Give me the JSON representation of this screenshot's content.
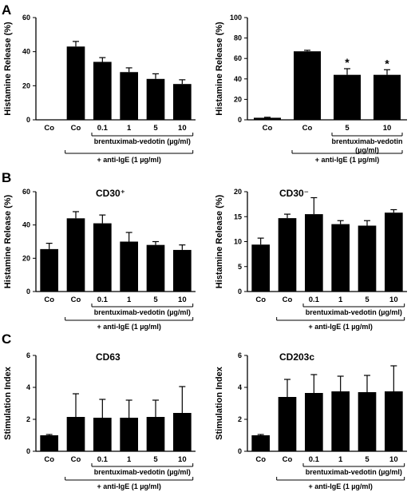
{
  "panel_letters": [
    "A",
    "B",
    "C"
  ],
  "chart_data": [
    {
      "panel": "A",
      "type": "bar",
      "title": "",
      "ylabel": "Histamine Release (%)",
      "ylim": [
        0,
        60
      ],
      "yticks": [
        0,
        20,
        40,
        60
      ],
      "categories": [
        "Co",
        "Co",
        "0.1",
        "1",
        "5",
        "10"
      ],
      "values": [
        0,
        43,
        34,
        28,
        24,
        21
      ],
      "errors": [
        0,
        3,
        2.5,
        2.5,
        3,
        2.5
      ],
      "significance": [
        "",
        "",
        "",
        "",
        "",
        ""
      ],
      "drug_label": "brentuximab-vedotin (µg/ml)",
      "stim_label": "+ anti-IgE (1 µg/ml)",
      "drug_span": [
        2,
        5
      ],
      "stim_span": [
        1,
        5
      ],
      "grid": false,
      "legend": "none"
    },
    {
      "panel": "A",
      "type": "bar",
      "title": "",
      "ylabel": "Histamine Release (%)",
      "ylim": [
        0,
        100
      ],
      "yticks": [
        0,
        20,
        40,
        60,
        80,
        100
      ],
      "categories": [
        "Co",
        "Co",
        "5",
        "10"
      ],
      "values": [
        2,
        67,
        44,
        44
      ],
      "errors": [
        0.5,
        1,
        6,
        5
      ],
      "significance": [
        "",
        "",
        "*",
        "*"
      ],
      "drug_label": "brentuximab-vedotin (µg/ml)",
      "stim_label": "+ anti-IgE (1 µg/ml)",
      "drug_span": [
        2,
        3
      ],
      "stim_span": [
        1,
        3
      ],
      "grid": false,
      "legend": "none"
    },
    {
      "panel": "B",
      "type": "bar",
      "title": "CD30⁺",
      "ylabel": "Histamine Release (%)",
      "ylim": [
        0,
        60
      ],
      "yticks": [
        0,
        20,
        40,
        60
      ],
      "categories": [
        "Co",
        "Co",
        "0.1",
        "1",
        "5",
        "10"
      ],
      "values": [
        25.5,
        44,
        41,
        30,
        28,
        25
      ],
      "errors": [
        3.5,
        4,
        5,
        5.5,
        2,
        3
      ],
      "significance": [
        "",
        "",
        "",
        "",
        "",
        ""
      ],
      "drug_label": "brentuximab-vedotin (µg/ml)",
      "stim_label": "+ anti-IgE (1 µg/ml)",
      "drug_span": [
        2,
        5
      ],
      "stim_span": [
        1,
        5
      ],
      "grid": false,
      "legend": "none"
    },
    {
      "panel": "B",
      "type": "bar",
      "title": "CD30⁻",
      "ylabel": "Histamine Release (%)",
      "ylim": [
        0,
        20
      ],
      "yticks": [
        0,
        5,
        10,
        15,
        20
      ],
      "categories": [
        "Co",
        "Co",
        "0.1",
        "1",
        "5",
        "10"
      ],
      "values": [
        9.4,
        14.7,
        15.5,
        13.5,
        13.2,
        15.8
      ],
      "errors": [
        1.3,
        0.8,
        3.3,
        0.7,
        1,
        0.6
      ],
      "significance": [
        "",
        "",
        "",
        "",
        "",
        ""
      ],
      "drug_label": "brentuximab-vedotin (µg/ml)",
      "stim_label": "+ anti-IgE (1 µg/ml)",
      "drug_span": [
        2,
        5
      ],
      "stim_span": [
        1,
        5
      ],
      "grid": false,
      "legend": "none"
    },
    {
      "panel": "C",
      "type": "bar",
      "title": "CD63",
      "ylabel": "Stimulation Index",
      "ylim": [
        0,
        6
      ],
      "yticks": [
        0,
        2,
        4,
        6
      ],
      "categories": [
        "Co",
        "Co",
        "0.1",
        "1",
        "5",
        "10"
      ],
      "values": [
        1,
        2.15,
        2.1,
        2.1,
        2.15,
        2.4
      ],
      "errors": [
        0.05,
        1.45,
        1.15,
        1.1,
        1.05,
        1.65
      ],
      "significance": [
        "",
        "",
        "",
        "",
        "",
        ""
      ],
      "drug_label": "brentuximab-vedotin (µg/ml)",
      "stim_label": "+ anti-IgE (1 µg/ml)",
      "drug_span": [
        2,
        5
      ],
      "stim_span": [
        1,
        5
      ],
      "grid": false,
      "legend": "none"
    },
    {
      "panel": "C",
      "type": "bar",
      "title": "CD203c",
      "ylabel": "Stimulation Index",
      "ylim": [
        0,
        6
      ],
      "yticks": [
        0,
        2,
        4,
        6
      ],
      "categories": [
        "Co",
        "Co",
        "0.1",
        "1",
        "5",
        "10"
      ],
      "values": [
        1,
        3.4,
        3.65,
        3.75,
        3.7,
        3.75
      ],
      "errors": [
        0.05,
        1.1,
        1.15,
        0.95,
        1.05,
        1.6
      ],
      "significance": [
        "",
        "",
        "",
        "",
        "",
        ""
      ],
      "drug_label": "brentuximab-vedotin (µg/ml)",
      "stim_label": "+ anti-IgE (1 µg/ml)",
      "drug_span": [
        2,
        5
      ],
      "stim_span": [
        1,
        5
      ],
      "grid": false,
      "legend": "none"
    }
  ]
}
